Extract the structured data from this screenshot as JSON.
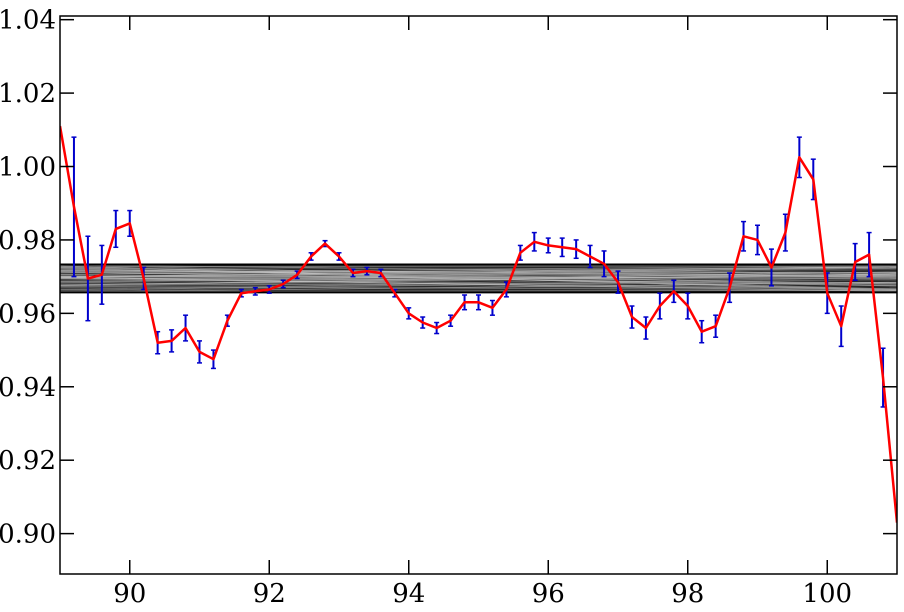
{
  "chart_data": {
    "type": "line",
    "title": "",
    "xlabel": "",
    "ylabel": "",
    "xlim": [
      89.0,
      101.0
    ],
    "ylim": [
      0.889,
      1.041
    ],
    "x_ticks": [
      90,
      92,
      94,
      96,
      98,
      100
    ],
    "x_tick_labels": [
      "90",
      "92",
      "94",
      "96",
      "98",
      "100"
    ],
    "y_ticks": [
      0.9,
      0.92,
      0.94,
      0.96,
      0.98,
      1.0,
      1.02,
      1.04
    ],
    "y_tick_labels": [
      "0.90",
      "0.92",
      "0.94",
      "0.96",
      "0.98",
      "1.00",
      "1.02",
      "1.04"
    ],
    "grid": false,
    "band": {
      "y_low": 0.9657,
      "y_high": 0.9733,
      "color": "#000000"
    },
    "series": [
      {
        "color": "#ff0000",
        "errcolor": "#0000cc",
        "x": [
          89.0,
          89.2,
          89.4,
          89.6,
          89.8,
          90.0,
          90.2,
          90.4,
          90.6,
          90.8,
          91.0,
          91.2,
          91.4,
          91.6,
          91.8,
          92.0,
          92.2,
          92.4,
          92.6,
          92.8,
          93.0,
          93.2,
          93.4,
          93.6,
          93.8,
          94.0,
          94.2,
          94.4,
          94.6,
          94.8,
          95.0,
          95.2,
          95.4,
          95.6,
          95.8,
          96.0,
          96.2,
          96.4,
          96.6,
          96.8,
          97.0,
          97.2,
          97.4,
          97.6,
          97.8,
          98.0,
          98.2,
          98.4,
          98.6,
          98.8,
          99.0,
          99.2,
          99.4,
          99.6,
          99.8,
          100.0,
          100.2,
          100.4,
          100.6,
          100.8,
          101.0
        ],
        "y": [
          1.011,
          0.989,
          0.9695,
          0.9705,
          0.983,
          0.9845,
          0.9695,
          0.952,
          0.9525,
          0.956,
          0.9495,
          0.9475,
          0.958,
          0.9655,
          0.966,
          0.9665,
          0.968,
          0.9705,
          0.9755,
          0.979,
          0.9755,
          0.971,
          0.9715,
          0.971,
          0.9655,
          0.96,
          0.9575,
          0.956,
          0.958,
          0.963,
          0.963,
          0.9615,
          0.9665,
          0.9765,
          0.9795,
          0.9785,
          0.978,
          0.9775,
          0.9755,
          0.9735,
          0.9685,
          0.959,
          0.956,
          0.962,
          0.966,
          0.962,
          0.955,
          0.9565,
          0.967,
          0.981,
          0.98,
          0.9725,
          0.982,
          1.0025,
          0.9965,
          0.9655,
          0.9565,
          0.974,
          0.976,
          0.9425,
          0.903
        ],
        "err": [
          0,
          0.019,
          0.0115,
          0.008,
          0.005,
          0.0035,
          0.003,
          0.003,
          0.003,
          0.0035,
          0.003,
          0.0025,
          0.0015,
          0.001,
          0.001,
          0.001,
          0.001,
          0.001,
          0.001,
          0.0008,
          0.001,
          0.001,
          0.001,
          0.001,
          0.001,
          0.0015,
          0.0015,
          0.0015,
          0.0015,
          0.002,
          0.002,
          0.002,
          0.002,
          0.002,
          0.0025,
          0.002,
          0.0025,
          0.0025,
          0.003,
          0.0035,
          0.003,
          0.003,
          0.003,
          0.0035,
          0.003,
          0.0035,
          0.003,
          0.003,
          0.004,
          0.004,
          0.004,
          0.005,
          0.005,
          0.0055,
          0.0055,
          0.0055,
          0.0055,
          0.005,
          0.006,
          0.008,
          0
        ]
      }
    ]
  }
}
